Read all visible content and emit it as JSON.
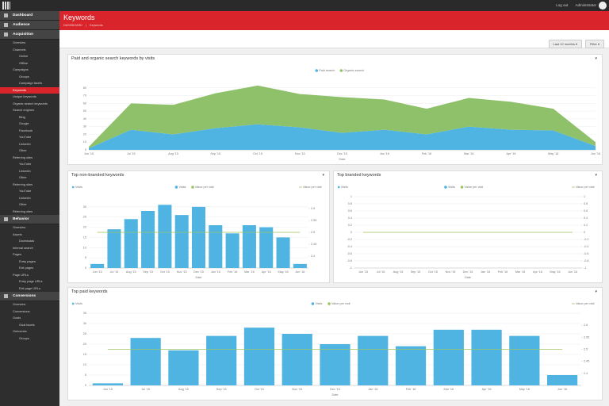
{
  "topbar": {
    "links": [
      "Log out",
      "Administrator"
    ]
  },
  "sidebar": {
    "sections": [
      {
        "title": "Dashboard",
        "items": []
      },
      {
        "title": "Audience",
        "items": []
      },
      {
        "title": "Acquisition",
        "items": [
          {
            "label": "Overview"
          },
          {
            "label": "Channels",
            "children": [
              {
                "label": "Online"
              },
              {
                "label": "Offline"
              }
            ]
          },
          {
            "label": "Campaigns",
            "children": [
              {
                "label": "Groups"
              },
              {
                "label": "Campaign facets"
              }
            ]
          },
          {
            "label": "Keywords",
            "active": true
          },
          {
            "label": "Unique keywords"
          },
          {
            "label": "Organic search keywords"
          },
          {
            "label": "Search engines",
            "children": [
              {
                "label": "Bing"
              },
              {
                "label": "Google"
              },
              {
                "label": "Facebook"
              },
              {
                "label": "YouTube"
              },
              {
                "label": "LinkedIn"
              },
              {
                "label": "Other"
              }
            ]
          },
          {
            "label": "Referring sites",
            "children": [
              {
                "label": "YouTube"
              },
              {
                "label": "LinkedIn"
              },
              {
                "label": "Other"
              }
            ]
          },
          {
            "label": "Referring sites",
            "children": [
              {
                "label": "YouTube"
              },
              {
                "label": "LinkedIn"
              },
              {
                "label": "Other"
              }
            ]
          },
          {
            "label": "Referring sites"
          }
        ]
      },
      {
        "title": "Behavior",
        "items": [
          {
            "label": "Overview"
          },
          {
            "label": "Assets",
            "children": [
              {
                "label": "Downloads"
              }
            ]
          },
          {
            "label": "Internal search"
          },
          {
            "label": "Pages",
            "children": [
              {
                "label": "Entry pages"
              },
              {
                "label": "Exit pages"
              }
            ]
          },
          {
            "label": "Page URLs",
            "children": [
              {
                "label": "Entry page URLs"
              },
              {
                "label": "Exit page URLs"
              }
            ]
          }
        ]
      },
      {
        "title": "Conversions",
        "items": [
          {
            "label": "Overview"
          },
          {
            "label": "Conversions"
          },
          {
            "label": "Goals",
            "children": [
              {
                "label": "Goal facets"
              }
            ]
          },
          {
            "label": "Outcomes",
            "children": [
              {
                "label": "Groups"
              }
            ]
          }
        ]
      }
    ]
  },
  "header": {
    "title": "Keywords",
    "breadcrumb": [
      "DASHBOARD",
      "Keywords"
    ]
  },
  "toolbar": {
    "buttons": [
      "Last 12 months",
      "Filter"
    ]
  },
  "chart_data": [
    {
      "type": "area",
      "title": "Paid and organic search keywords by visits",
      "categories": [
        "Jun '15",
        "Jul '15",
        "Aug '15",
        "Sep '15",
        "Oct '15",
        "Nov '15",
        "Dec '15",
        "Jan '16",
        "Feb '16",
        "Mar '16",
        "Apr '16",
        "May '16",
        "Jun '16"
      ],
      "series": [
        {
          "name": "Paid search",
          "color": "#4fb4e2",
          "values": [
            2,
            26,
            20,
            28,
            33,
            29,
            22,
            26,
            20,
            30,
            26,
            25,
            5
          ]
        },
        {
          "name": "Organic search",
          "color": "#8ec16a",
          "values": [
            2,
            34,
            38,
            45,
            50,
            43,
            46,
            39,
            33,
            37,
            36,
            28,
            5
          ]
        }
      ],
      "x_label": "Date",
      "ylim": [
        0,
        90
      ],
      "yticks": [
        0,
        10,
        20,
        30,
        40,
        50,
        60,
        70,
        80
      ],
      "grid": true
    },
    {
      "type": "bar",
      "title": "Top non-branded keywords",
      "categories": [
        "Jun '15",
        "Jul '15",
        "Aug '15",
        "Sep '15",
        "Oct '15",
        "Nov '15",
        "Dec '15",
        "Jan '16",
        "Feb '16",
        "Mar '16",
        "Apr '16",
        "May '16",
        "Jun '16"
      ],
      "series": [
        {
          "name": "Visits",
          "color": "#4fb4e2",
          "values": [
            2,
            19,
            24,
            28,
            31,
            26,
            30,
            21,
            17,
            21,
            20,
            15,
            2
          ]
        },
        {
          "name": "Value per visit",
          "color": "#9dc35e",
          "axis": "y2",
          "values": [
            2.5,
            2.5,
            2.5,
            2.5,
            2.5,
            2.5,
            2.5,
            2.5,
            2.5,
            2.5,
            2.5,
            2.5,
            2.5
          ]
        }
      ],
      "x_label": "Date",
      "ylim": [
        0,
        35
      ],
      "yticks": [
        0,
        5,
        10,
        15,
        20,
        25,
        30
      ],
      "y2lim": [
        2.35,
        2.65
      ],
      "y2ticks": [
        2.4,
        2.45,
        2.5,
        2.55,
        2.6
      ],
      "grid": true
    },
    {
      "type": "bar",
      "title": "Top branded keywords",
      "categories": [
        "Jun '15",
        "Jul '15",
        "Aug '15",
        "Sep '15",
        "Oct '15",
        "Nov '15",
        "Dec '15",
        "Jan '16",
        "Feb '16",
        "Mar '16",
        "Apr '16",
        "May '16",
        "Jun '16"
      ],
      "series": [
        {
          "name": "Visits",
          "color": "#4fb4e2",
          "values": [
            0,
            0,
            0,
            0,
            0,
            0,
            0,
            0,
            0,
            0,
            0,
            0,
            0
          ]
        },
        {
          "name": "Value per visit",
          "color": "#9dc35e",
          "axis": "y2",
          "values": [
            0,
            0,
            0,
            0,
            0,
            0,
            0,
            0,
            0,
            0,
            0,
            0,
            0
          ]
        }
      ],
      "x_label": "Date",
      "ylim": [
        -1,
        1
      ],
      "yticks": [
        -1,
        -0.8,
        -0.6,
        -0.4,
        -0.2,
        0,
        0.2,
        0.4,
        0.6,
        0.8,
        1
      ],
      "y2lim": [
        -1,
        1
      ],
      "y2ticks": [
        -1,
        -0.8,
        -0.6,
        -0.4,
        -0.2,
        0,
        0.2,
        0.4,
        0.6,
        0.8,
        1
      ],
      "grid": true
    },
    {
      "type": "bar",
      "title": "Top paid keywords",
      "categories": [
        "Jun '15",
        "Jul '15",
        "Aug '15",
        "Sep '15",
        "Oct '15",
        "Nov '15",
        "Dec '15",
        "Jan '16",
        "Feb '16",
        "Mar '16",
        "Apr '16",
        "May '16",
        "Jun '16"
      ],
      "series": [
        {
          "name": "Visits",
          "color": "#4fb4e2",
          "values": [
            1,
            23,
            17,
            24,
            28,
            25,
            20,
            24,
            19,
            27,
            27,
            24,
            5
          ]
        },
        {
          "name": "Value per visit",
          "color": "#9dc35e",
          "axis": "y2",
          "values": [
            2.5,
            2.5,
            2.5,
            2.5,
            2.5,
            2.5,
            2.5,
            2.5,
            2.5,
            2.5,
            2.5,
            2.5,
            2.5
          ]
        }
      ],
      "x_label": "Date",
      "ylim": [
        0,
        35
      ],
      "yticks": [
        0,
        5,
        10,
        15,
        20,
        25,
        30,
        35
      ],
      "y2lim": [
        2.35,
        2.65
      ],
      "y2ticks": [
        2.4,
        2.45,
        2.5,
        2.55,
        2.6
      ],
      "grid": true
    }
  ]
}
